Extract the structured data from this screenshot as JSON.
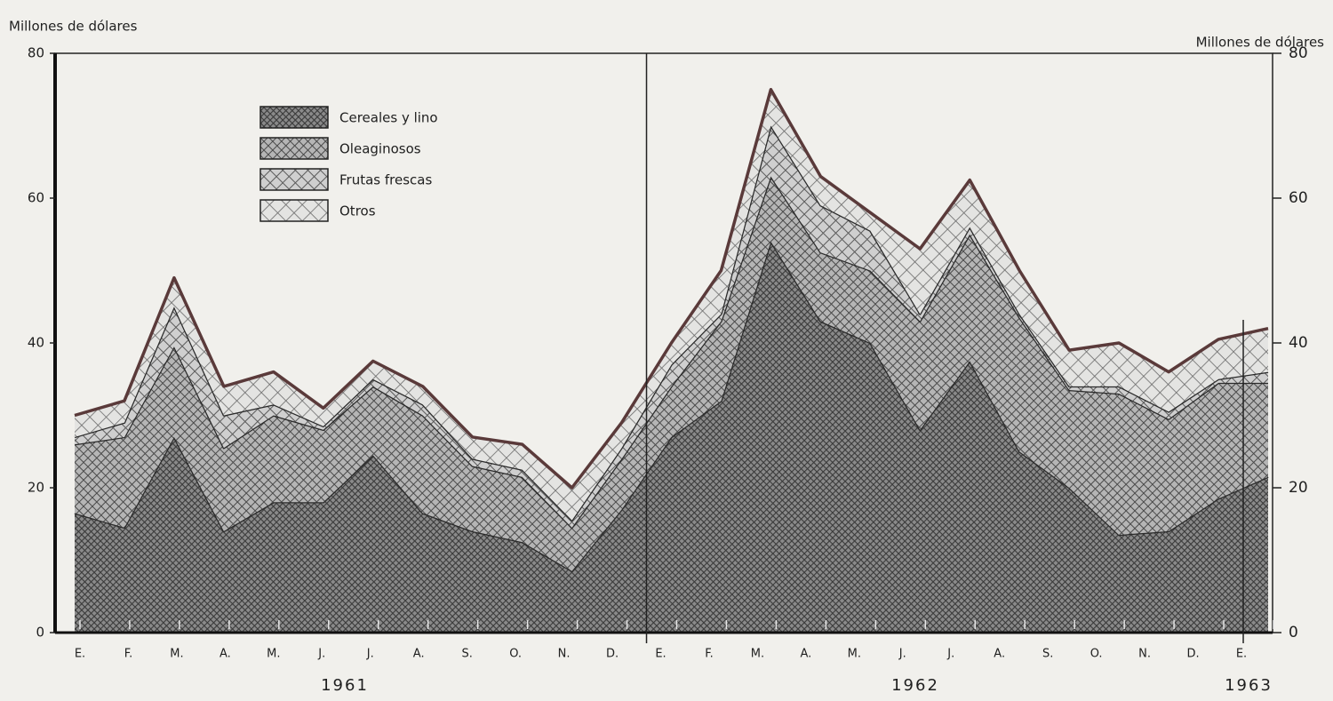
{
  "chart_data": {
    "type": "stacked_area",
    "y_label": "Millones de dólares",
    "y2_label": "Millones de dólares",
    "categories": [
      "E.",
      "F.",
      "M.",
      "A.",
      "M.",
      "J.",
      "J.",
      "A.",
      "S.",
      "O.",
      "N.",
      "D.",
      "E.",
      "F.",
      "M.",
      "A.",
      "M.",
      "J.",
      "J.",
      "A.",
      "S.",
      "O.",
      "N.",
      "D.",
      "E."
    ],
    "year_labels": [
      "1961",
      "1962",
      "1963"
    ],
    "series": [
      {
        "name": "Cereales y lino",
        "color": "#3a3a3a",
        "values": [
          16.5,
          14.5,
          27,
          14,
          18,
          18,
          24.5,
          16.5,
          14,
          12.5,
          8.5,
          17,
          27,
          32,
          54,
          43,
          40,
          28,
          37.5,
          25,
          20,
          13.5,
          14,
          18.5,
          21.5
        ]
      },
      {
        "name": "Oleaginosos",
        "color": "#4a4a4a",
        "values": [
          9.5,
          12.5,
          12.5,
          11.5,
          12,
          10,
          9.5,
          13.5,
          9,
          9,
          6,
          7,
          7,
          11,
          9,
          9.5,
          10,
          15,
          17.5,
          18.5,
          13.5,
          19.5,
          15.5,
          16,
          13
        ]
      },
      {
        "name": "Frutas frescas",
        "color": "#5a5a5a",
        "values": [
          1,
          2,
          5.5,
          4.5,
          1.5,
          0.5,
          1,
          1.5,
          1,
          1,
          1,
          1.5,
          3,
          1,
          7,
          6.5,
          5.5,
          1,
          1,
          0.5,
          0.5,
          1,
          1,
          0.5,
          1.5
        ]
      },
      {
        "name": "Otros",
        "color": "#6a6a6a",
        "values": [
          3,
          3,
          4,
          4,
          4.5,
          2.5,
          2.5,
          2.5,
          3,
          3.5,
          4.5,
          3.5,
          3,
          6,
          5,
          4,
          2.5,
          9,
          6.5,
          6,
          5,
          6,
          5.5,
          5.5,
          6
        ]
      }
    ],
    "ylim": [
      0,
      80
    ],
    "yticks": [
      0,
      20,
      40,
      60,
      80
    ],
    "y2lim": [
      0,
      80
    ],
    "y2ticks": [
      0,
      20,
      40,
      60,
      80
    ],
    "legend": "upper left"
  }
}
